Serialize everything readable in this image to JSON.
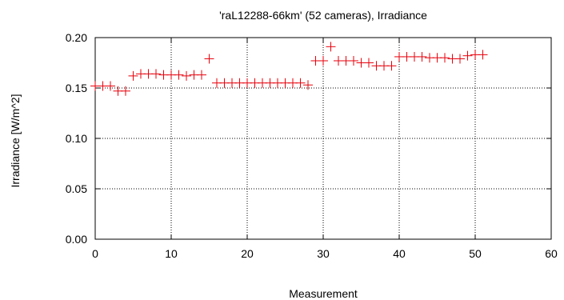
{
  "chart_data": {
    "type": "scatter",
    "title": "'raL12288-66km' (52 cameras), Irradiance",
    "xlabel": "Measurement",
    "ylabel": "Irradiance [W/m^2]",
    "xlim": [
      0,
      60
    ],
    "ylim": [
      0,
      0.2
    ],
    "xticks": [
      0,
      10,
      20,
      30,
      40,
      50,
      60
    ],
    "yticks": [
      "0.00",
      "0.05",
      "0.10",
      "0.15",
      "0.20"
    ],
    "grid": true,
    "marker": "plus",
    "marker_color": "#e8000b",
    "series": [
      {
        "x": [
          0,
          1,
          2,
          3,
          4,
          5,
          6,
          7,
          8,
          9,
          10,
          11,
          12,
          13,
          14,
          15,
          16,
          17,
          18,
          19,
          20,
          21,
          22,
          23,
          24,
          25,
          26,
          27,
          28,
          29,
          30,
          31,
          32,
          33,
          34,
          35,
          36,
          37,
          38,
          39,
          40,
          41,
          42,
          43,
          44,
          45,
          46,
          47,
          48,
          49,
          50,
          51
        ],
        "y": [
          0.152,
          0.152,
          0.152,
          0.147,
          0.147,
          0.162,
          0.164,
          0.164,
          0.164,
          0.163,
          0.163,
          0.163,
          0.162,
          0.163,
          0.163,
          0.179,
          0.155,
          0.155,
          0.155,
          0.155,
          0.155,
          0.155,
          0.155,
          0.155,
          0.155,
          0.155,
          0.155,
          0.155,
          0.153,
          0.177,
          0.177,
          0.191,
          0.177,
          0.177,
          0.177,
          0.175,
          0.175,
          0.172,
          0.172,
          0.172,
          0.181,
          0.181,
          0.181,
          0.181,
          0.18,
          0.18,
          0.18,
          0.179,
          0.179,
          0.182,
          0.183,
          0.183
        ]
      }
    ]
  }
}
